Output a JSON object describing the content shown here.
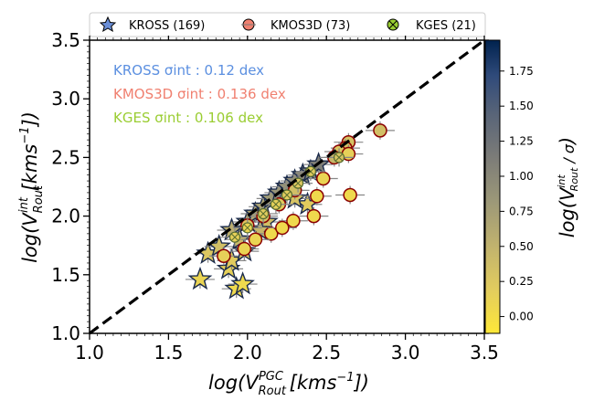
{
  "chart_data": {
    "type": "scatter",
    "title": "",
    "xlabel": "log(V_Rout^PGC [km s^-1])",
    "ylabel": "log(V_Rout^int [km s^-1])",
    "xlim": [
      1.0,
      3.5
    ],
    "ylim": [
      1.0,
      3.5
    ],
    "xticks": [
      1.0,
      1.5,
      2.0,
      2.5,
      3.0,
      3.5
    ],
    "yticks": [
      1.0,
      1.5,
      2.0,
      2.5,
      3.0,
      3.5
    ],
    "x_tick_labels": [
      "1.0",
      "1.5",
      "2.0",
      "2.5",
      "3.0",
      "3.5"
    ],
    "y_tick_labels": [
      "1.0",
      "1.5",
      "2.0",
      "2.5",
      "3.0",
      "3.5"
    ],
    "one_to_one_line": {
      "style": "dashed",
      "color": "#000000",
      "x": [
        1.0,
        3.5
      ],
      "y": [
        1.0,
        3.5
      ]
    },
    "legend": {
      "position": "top",
      "entries": [
        {
          "label": "KROSS (169)",
          "marker": "star",
          "color": "#6b8fd8"
        },
        {
          "label": "KMOS3D (73)",
          "marker": "circle",
          "color": "#f08070"
        },
        {
          "label": "KGES (21)",
          "marker": "x-circle",
          "color": "#9acd32"
        }
      ]
    },
    "annotations": [
      {
        "text": "KROSS σint :  0.12 dex",
        "color": "#5b8fe0"
      },
      {
        "text": "KMOS3D σint :  0.136 dex",
        "color": "#f08070"
      },
      {
        "text": "KGES σint :  0.106 dex",
        "color": "#9acd32"
      }
    ],
    "colorbar": {
      "label": "log(V_Rout^int / σ)",
      "range": [
        -0.12,
        1.97
      ],
      "ticks": [
        0.0,
        0.25,
        0.5,
        0.75,
        1.0,
        1.25,
        1.5,
        1.75
      ],
      "tick_labels": [
        "0.00",
        "0.25",
        "0.50",
        "0.75",
        "1.00",
        "1.25",
        "1.50",
        "1.75"
      ],
      "colormap": "cividis_r"
    },
    "series": [
      {
        "name": "KROSS",
        "marker": "star",
        "points": [
          {
            "x": 1.7,
            "y": 1.46,
            "c": 0.1
          },
          {
            "x": 1.93,
            "y": 1.38,
            "c": 0.05
          },
          {
            "x": 1.97,
            "y": 1.42,
            "c": 0.05
          },
          {
            "x": 1.88,
            "y": 1.55,
            "c": 0.15
          },
          {
            "x": 1.9,
            "y": 1.62,
            "c": 0.2
          },
          {
            "x": 1.75,
            "y": 1.68,
            "c": 0.25
          },
          {
            "x": 1.82,
            "y": 1.74,
            "c": 0.35
          },
          {
            "x": 1.95,
            "y": 1.8,
            "c": 0.4
          },
          {
            "x": 1.9,
            "y": 1.88,
            "c": 0.55
          },
          {
            "x": 2.0,
            "y": 1.95,
            "c": 0.6
          },
          {
            "x": 2.05,
            "y": 2.02,
            "c": 0.65
          },
          {
            "x": 2.1,
            "y": 2.08,
            "c": 0.7
          },
          {
            "x": 2.15,
            "y": 2.15,
            "c": 0.8
          },
          {
            "x": 2.2,
            "y": 2.2,
            "c": 0.85
          },
          {
            "x": 2.25,
            "y": 2.25,
            "c": 0.9
          },
          {
            "x": 2.3,
            "y": 2.3,
            "c": 0.95
          },
          {
            "x": 2.35,
            "y": 2.35,
            "c": 1.0
          },
          {
            "x": 2.4,
            "y": 2.38,
            "c": 1.05
          },
          {
            "x": 2.45,
            "y": 2.44,
            "c": 1.1
          },
          {
            "x": 2.38,
            "y": 2.1,
            "c": 0.2
          },
          {
            "x": 2.3,
            "y": 2.15,
            "c": 0.3
          },
          {
            "x": 2.12,
            "y": 1.95,
            "c": 0.35
          },
          {
            "x": 1.98,
            "y": 1.7,
            "c": 0.3
          },
          {
            "x": 2.08,
            "y": 1.88,
            "c": 0.45
          }
        ]
      },
      {
        "name": "KMOS3D",
        "marker": "circle",
        "points": [
          {
            "x": 2.84,
            "y": 2.73,
            "c": 0.35
          },
          {
            "x": 2.64,
            "y": 2.63,
            "c": 0.3
          },
          {
            "x": 2.62,
            "y": 2.58,
            "c": 0.3
          },
          {
            "x": 2.58,
            "y": 2.55,
            "c": 0.25
          },
          {
            "x": 2.55,
            "y": 2.5,
            "c": 0.45
          },
          {
            "x": 2.64,
            "y": 2.53,
            "c": 0.15
          },
          {
            "x": 2.48,
            "y": 2.32,
            "c": 0.1
          },
          {
            "x": 2.44,
            "y": 2.17,
            "c": 0.05
          },
          {
            "x": 2.42,
            "y": 2.0,
            "c": 0.05
          },
          {
            "x": 2.65,
            "y": 2.18,
            "c": 0.05
          },
          {
            "x": 2.29,
            "y": 1.96,
            "c": 0.05
          },
          {
            "x": 2.15,
            "y": 1.85,
            "c": 0.05
          },
          {
            "x": 2.22,
            "y": 1.9,
            "c": 0.05
          },
          {
            "x": 2.05,
            "y": 1.8,
            "c": 0.1
          },
          {
            "x": 1.98,
            "y": 1.72,
            "c": 0.1
          },
          {
            "x": 1.85,
            "y": 1.66,
            "c": 0.15
          },
          {
            "x": 2.1,
            "y": 2.0,
            "c": 0.3
          },
          {
            "x": 2.3,
            "y": 2.22,
            "c": 0.35
          },
          {
            "x": 2.0,
            "y": 1.92,
            "c": 0.25
          },
          {
            "x": 2.2,
            "y": 2.1,
            "c": 0.2
          }
        ]
      },
      {
        "name": "KGES",
        "marker": "x-circle",
        "points": [
          {
            "x": 2.58,
            "y": 2.5,
            "c": 0.3
          },
          {
            "x": 2.4,
            "y": 2.38,
            "c": 0.2
          },
          {
            "x": 2.32,
            "y": 2.28,
            "c": 0.25
          },
          {
            "x": 2.25,
            "y": 2.18,
            "c": 0.2
          },
          {
            "x": 2.18,
            "y": 2.1,
            "c": 0.15
          },
          {
            "x": 2.1,
            "y": 2.02,
            "c": 0.2
          },
          {
            "x": 2.0,
            "y": 1.9,
            "c": 0.1
          },
          {
            "x": 1.92,
            "y": 1.82,
            "c": 0.15
          }
        ]
      }
    ]
  }
}
